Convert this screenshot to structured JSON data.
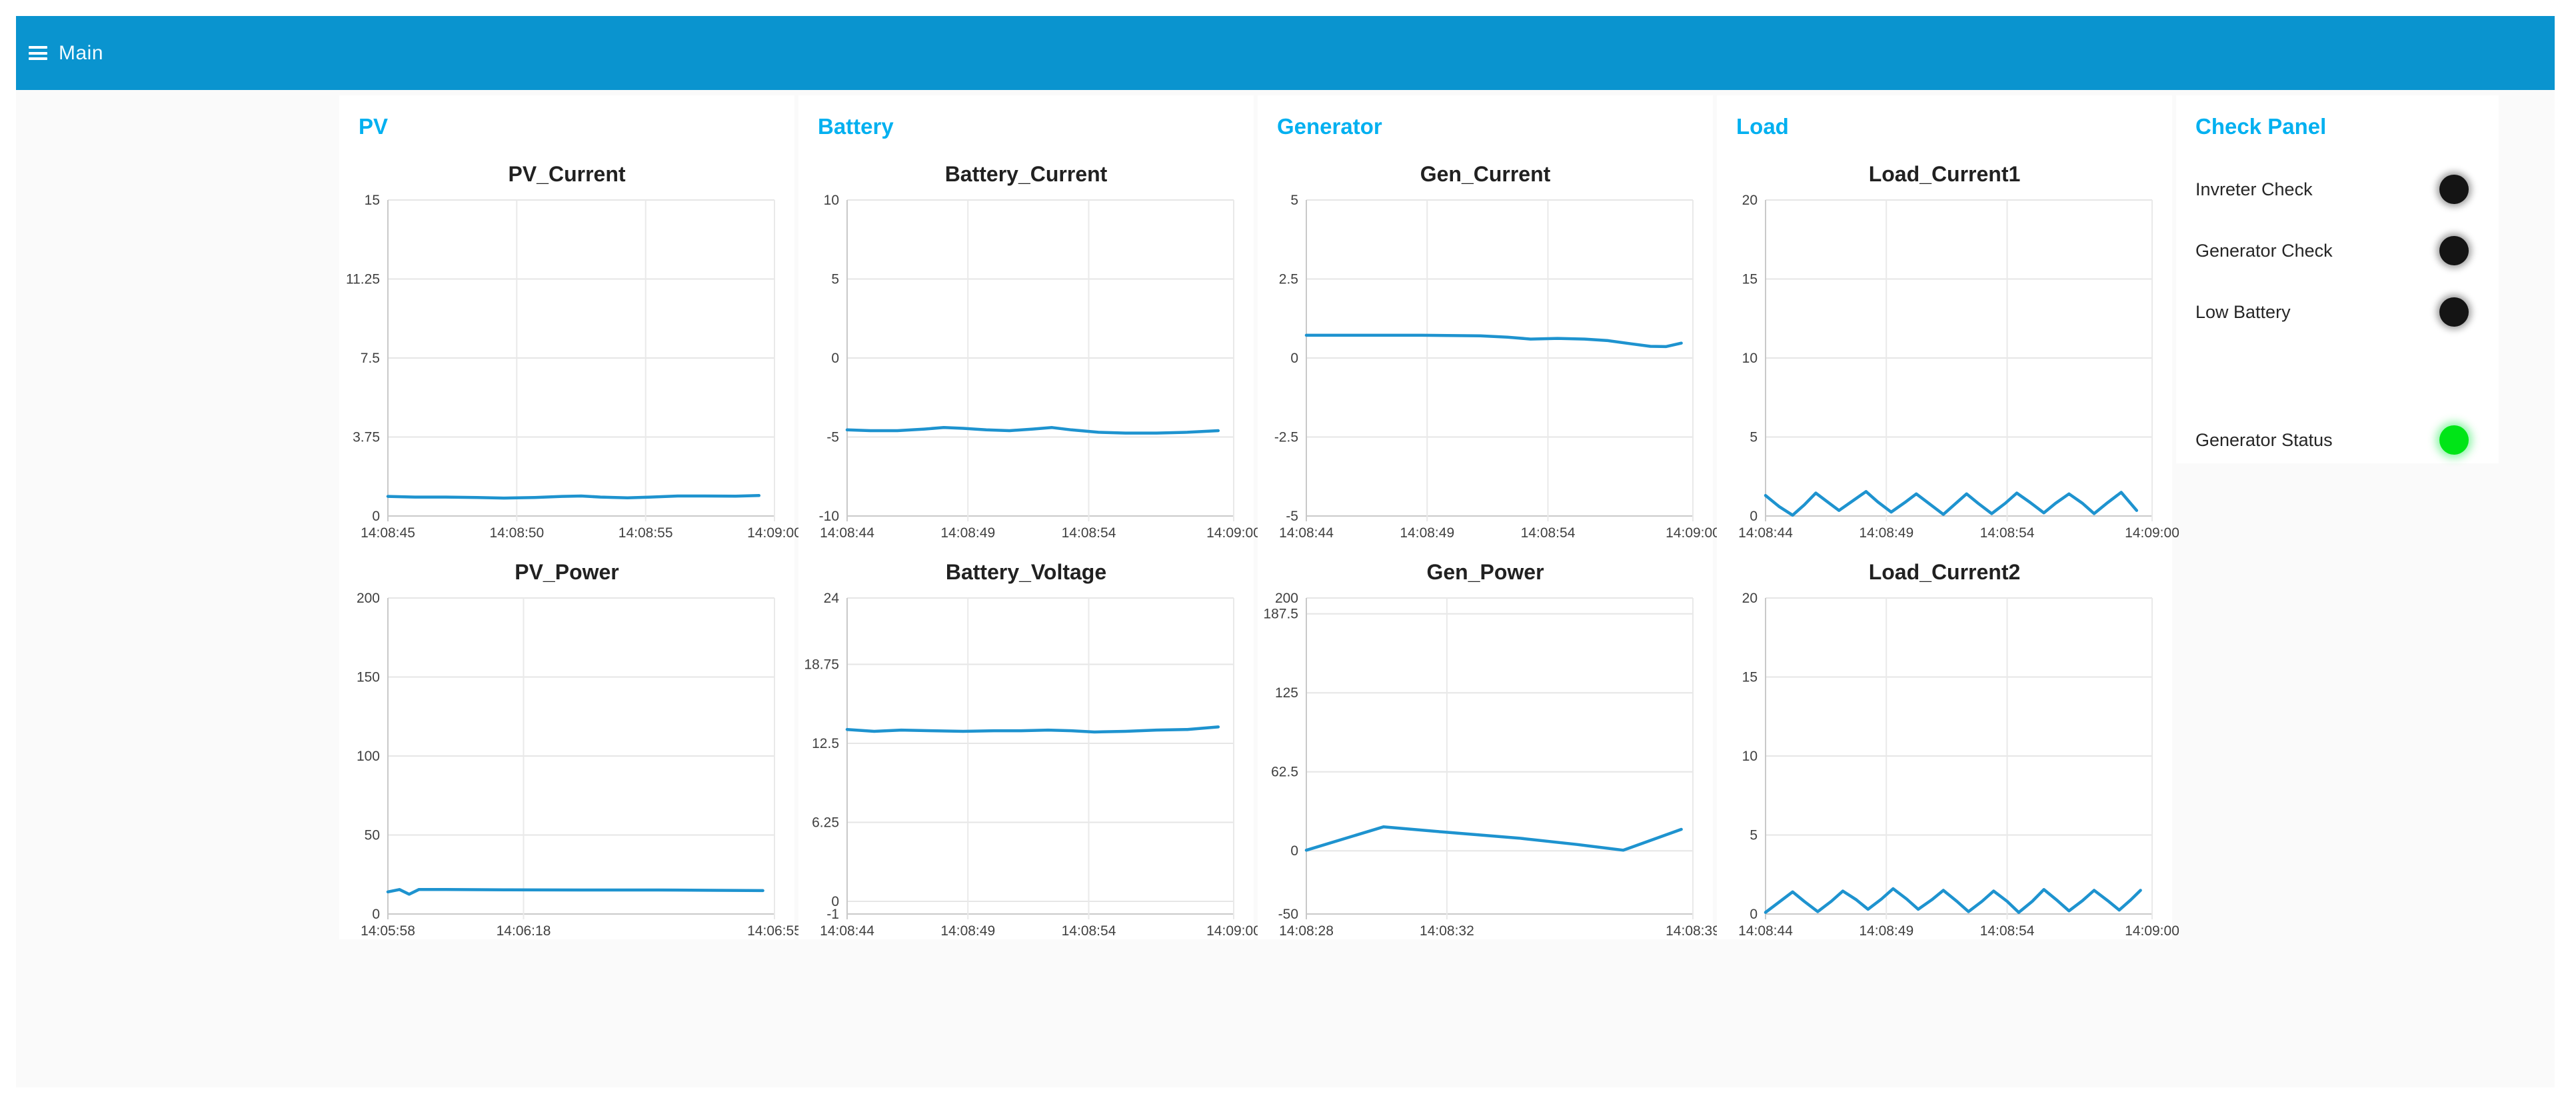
{
  "header": {
    "title": "Main"
  },
  "colors": {
    "header_bg": "#0a94cf",
    "accent": "#00b0f0",
    "line": "#1e93cf",
    "led_off": "#141414",
    "led_on": "#00e517",
    "page_bg": "#ffffff",
    "dashboard_bg": "#fafafa"
  },
  "panels": [
    {
      "title": "PV",
      "chart_ids": [
        "pv_current",
        "pv_power"
      ]
    },
    {
      "title": "Battery",
      "chart_ids": [
        "battery_current",
        "battery_voltage"
      ]
    },
    {
      "title": "Generator",
      "chart_ids": [
        "gen_current",
        "gen_power"
      ]
    },
    {
      "title": "Load",
      "chart_ids": [
        "load_current1",
        "load_current2"
      ]
    }
  ],
  "check_panel": {
    "title": "Check Panel",
    "indicators": [
      {
        "label": "Invreter Check",
        "state": "off",
        "kind": "check"
      },
      {
        "label": "Generator Check",
        "state": "off",
        "kind": "check"
      },
      {
        "label": "Low Battery",
        "state": "off",
        "kind": "check"
      },
      {
        "label": "Generator Status",
        "state": "on",
        "kind": "status"
      }
    ]
  },
  "chart_data": [
    {
      "id": "pv_current",
      "panel": "PV",
      "type": "line",
      "title": "PV_Current",
      "ylim": [
        0,
        15
      ],
      "yticks": [
        15,
        11.25,
        7.5,
        3.75,
        0
      ],
      "xticks": [
        "14:08:45",
        "14:08:50",
        "14:08:55",
        "14:09:00"
      ],
      "grid": true,
      "legend": "none",
      "points": [
        [
          0,
          0.93
        ],
        [
          0.07,
          0.9
        ],
        [
          0.15,
          0.9
        ],
        [
          0.23,
          0.88
        ],
        [
          0.3,
          0.85
        ],
        [
          0.38,
          0.88
        ],
        [
          0.45,
          0.93
        ],
        [
          0.5,
          0.95
        ],
        [
          0.55,
          0.9
        ],
        [
          0.62,
          0.86
        ],
        [
          0.68,
          0.9
        ],
        [
          0.75,
          0.95
        ],
        [
          0.82,
          0.95
        ],
        [
          0.9,
          0.94
        ],
        [
          0.96,
          0.97
        ]
      ]
    },
    {
      "id": "pv_power",
      "panel": "PV",
      "type": "line",
      "title": "PV_Power",
      "ylim": [
        0,
        200
      ],
      "yticks": [
        200,
        150,
        100,
        50,
        0
      ],
      "xticks": [
        "14:05:58",
        "14:06:18",
        "14:06:55"
      ],
      "grid": true,
      "legend": "none",
      "points": [
        [
          0,
          14
        ],
        [
          0.03,
          15.5
        ],
        [
          0.055,
          12.5
        ],
        [
          0.08,
          15.5
        ],
        [
          0.15,
          15.5
        ],
        [
          0.3,
          15.3
        ],
        [
          0.5,
          15.2
        ],
        [
          0.7,
          15.2
        ],
        [
          0.85,
          15
        ],
        [
          0.97,
          14.8
        ]
      ]
    },
    {
      "id": "battery_current",
      "panel": "Battery",
      "type": "line",
      "title": "Battery_Current",
      "ylim": [
        -10,
        10
      ],
      "yticks": [
        10,
        5,
        0,
        -5,
        -10
      ],
      "xticks": [
        "14:08:44",
        "14:08:49",
        "14:08:54",
        "14:09:00"
      ],
      "grid": true,
      "legend": "none",
      "points": [
        [
          0,
          -4.55
        ],
        [
          0.06,
          -4.6
        ],
        [
          0.13,
          -4.6
        ],
        [
          0.2,
          -4.5
        ],
        [
          0.25,
          -4.4
        ],
        [
          0.3,
          -4.45
        ],
        [
          0.36,
          -4.55
        ],
        [
          0.42,
          -4.6
        ],
        [
          0.48,
          -4.5
        ],
        [
          0.53,
          -4.4
        ],
        [
          0.58,
          -4.55
        ],
        [
          0.65,
          -4.7
        ],
        [
          0.72,
          -4.75
        ],
        [
          0.8,
          -4.75
        ],
        [
          0.88,
          -4.7
        ],
        [
          0.96,
          -4.6
        ]
      ]
    },
    {
      "id": "battery_voltage",
      "panel": "Battery",
      "type": "line",
      "title": "Battery_Voltage",
      "ylim": [
        -1,
        24
      ],
      "yticks": [
        24,
        18.75,
        12.5,
        6.25,
        0,
        -1
      ],
      "xticks": [
        "14:08:44",
        "14:08:49",
        "14:08:54",
        "14:09:00"
      ],
      "grid": true,
      "legend": "none",
      "points": [
        [
          0,
          13.6
        ],
        [
          0.07,
          13.45
        ],
        [
          0.14,
          13.55
        ],
        [
          0.22,
          13.5
        ],
        [
          0.3,
          13.45
        ],
        [
          0.38,
          13.5
        ],
        [
          0.45,
          13.5
        ],
        [
          0.52,
          13.55
        ],
        [
          0.58,
          13.5
        ],
        [
          0.64,
          13.4
        ],
        [
          0.72,
          13.45
        ],
        [
          0.8,
          13.55
        ],
        [
          0.88,
          13.6
        ],
        [
          0.96,
          13.8
        ]
      ]
    },
    {
      "id": "gen_current",
      "panel": "Generator",
      "type": "line",
      "title": "Gen_Current",
      "ylim": [
        -5,
        5
      ],
      "yticks": [
        5,
        2.5,
        0,
        -2.5,
        -5
      ],
      "xticks": [
        "14:08:44",
        "14:08:49",
        "14:08:54",
        "14:09:00"
      ],
      "grid": true,
      "legend": "none",
      "points": [
        [
          0,
          0.72
        ],
        [
          0.15,
          0.72
        ],
        [
          0.3,
          0.72
        ],
        [
          0.45,
          0.7
        ],
        [
          0.52,
          0.66
        ],
        [
          0.58,
          0.6
        ],
        [
          0.65,
          0.62
        ],
        [
          0.72,
          0.6
        ],
        [
          0.78,
          0.55
        ],
        [
          0.84,
          0.45
        ],
        [
          0.89,
          0.37
        ],
        [
          0.93,
          0.36
        ],
        [
          0.97,
          0.47
        ]
      ]
    },
    {
      "id": "gen_power",
      "panel": "Generator",
      "type": "line",
      "title": "Gen_Power",
      "ylim": [
        -50,
        200
      ],
      "yticks": [
        200,
        187.5,
        125,
        62.5,
        0,
        -50
      ],
      "xticks": [
        "14:08:28",
        "14:08:32",
        "14:08:39"
      ],
      "grid": true,
      "legend": "none",
      "points": [
        [
          0,
          0.5
        ],
        [
          0.2,
          19
        ],
        [
          0.35,
          15
        ],
        [
          0.55,
          10
        ],
        [
          0.7,
          5
        ],
        [
          0.82,
          0.5
        ],
        [
          0.97,
          17
        ]
      ]
    },
    {
      "id": "load_current1",
      "panel": "Load",
      "type": "line",
      "title": "Load_Current1",
      "ylim": [
        0,
        20
      ],
      "yticks": [
        20,
        15,
        10,
        5,
        0
      ],
      "xticks": [
        "14:08:44",
        "14:08:49",
        "14:08:54",
        "14:09:00"
      ],
      "grid": true,
      "legend": "none",
      "points": [
        [
          0,
          1.3
        ],
        [
          0.035,
          0.6
        ],
        [
          0.07,
          0.05
        ],
        [
          0.1,
          0.7
        ],
        [
          0.13,
          1.45
        ],
        [
          0.16,
          0.9
        ],
        [
          0.19,
          0.35
        ],
        [
          0.225,
          0.95
        ],
        [
          0.26,
          1.55
        ],
        [
          0.29,
          0.9
        ],
        [
          0.325,
          0.25
        ],
        [
          0.36,
          0.85
        ],
        [
          0.39,
          1.4
        ],
        [
          0.425,
          0.75
        ],
        [
          0.46,
          0.1
        ],
        [
          0.49,
          0.75
        ],
        [
          0.52,
          1.4
        ],
        [
          0.55,
          0.8
        ],
        [
          0.585,
          0.15
        ],
        [
          0.62,
          0.8
        ],
        [
          0.65,
          1.45
        ],
        [
          0.685,
          0.85
        ],
        [
          0.72,
          0.2
        ],
        [
          0.75,
          0.8
        ],
        [
          0.785,
          1.4
        ],
        [
          0.82,
          0.8
        ],
        [
          0.85,
          0.15
        ],
        [
          0.885,
          0.85
        ],
        [
          0.92,
          1.5
        ],
        [
          0.96,
          0.35
        ]
      ]
    },
    {
      "id": "load_current2",
      "panel": "Load",
      "type": "line",
      "title": "Load_Current2",
      "ylim": [
        0,
        20
      ],
      "yticks": [
        20,
        15,
        10,
        5,
        0
      ],
      "xticks": [
        "14:08:44",
        "14:08:49",
        "14:08:54",
        "14:09:00"
      ],
      "grid": true,
      "legend": "none",
      "points": [
        [
          0,
          0.1
        ],
        [
          0.035,
          0.75
        ],
        [
          0.07,
          1.4
        ],
        [
          0.1,
          0.8
        ],
        [
          0.135,
          0.15
        ],
        [
          0.17,
          0.8
        ],
        [
          0.2,
          1.45
        ],
        [
          0.235,
          0.9
        ],
        [
          0.265,
          0.3
        ],
        [
          0.3,
          0.95
        ],
        [
          0.33,
          1.6
        ],
        [
          0.365,
          0.95
        ],
        [
          0.395,
          0.3
        ],
        [
          0.43,
          0.9
        ],
        [
          0.46,
          1.5
        ],
        [
          0.495,
          0.8
        ],
        [
          0.525,
          0.15
        ],
        [
          0.56,
          0.8
        ],
        [
          0.59,
          1.45
        ],
        [
          0.625,
          0.8
        ],
        [
          0.655,
          0.1
        ],
        [
          0.69,
          0.8
        ],
        [
          0.72,
          1.55
        ],
        [
          0.755,
          0.85
        ],
        [
          0.785,
          0.2
        ],
        [
          0.82,
          0.85
        ],
        [
          0.85,
          1.5
        ],
        [
          0.885,
          0.85
        ],
        [
          0.915,
          0.25
        ],
        [
          0.945,
          0.9
        ],
        [
          0.97,
          1.5
        ]
      ]
    }
  ]
}
